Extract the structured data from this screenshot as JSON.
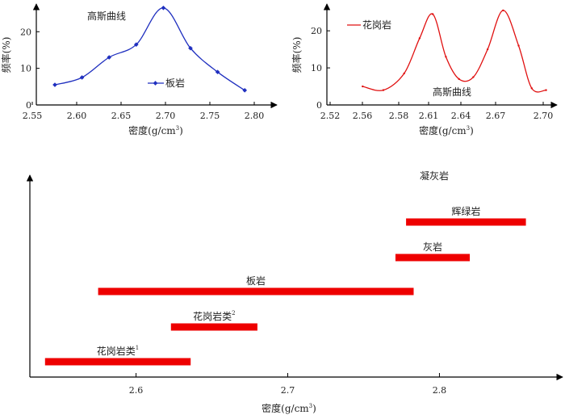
{
  "chart_data": [
    {
      "type": "line",
      "title": "",
      "xlabel": "密度(g/cm",
      "xlabel_sup": "3",
      "xlabel_close": ")",
      "ylabel": "频率(%)",
      "xlim": [
        2.55,
        2.8
      ],
      "ylim": [
        0,
        28
      ],
      "xticks": [
        "2.55",
        "2.60",
        "2.65",
        "2.70",
        "2.75",
        "2.80"
      ],
      "yticks": [
        "0",
        "10",
        "20"
      ],
      "annotation": "高斯曲线",
      "series": [
        {
          "name": "板岩",
          "color": "#1f2fbf",
          "x": [
            2.575,
            2.605,
            2.635,
            2.665,
            2.695,
            2.725,
            2.755,
            2.785
          ],
          "y": [
            5.5,
            7.5,
            13,
            16.5,
            26.5,
            15.5,
            9,
            4
          ]
        }
      ]
    },
    {
      "type": "line",
      "title": "",
      "xlabel": "密度(g/cm",
      "xlabel_sup": "3",
      "xlabel_close": ")",
      "ylabel": "频率(%)",
      "xlim": [
        2.52,
        2.7
      ],
      "ylim": [
        0,
        27
      ],
      "xticks": [
        "2.52",
        "2.56",
        "2.58",
        "2.61",
        "2.64",
        "2.67",
        "2.70"
      ],
      "yticks": [
        "0",
        "10",
        "20"
      ],
      "annotation": "高斯曲线",
      "series": [
        {
          "name": "花岗岩",
          "color": "#e01010",
          "x": [
            2.5452,
            2.5626,
            2.58,
            2.593,
            2.604,
            2.615,
            2.626,
            2.638,
            2.65,
            2.663,
            2.676,
            2.687,
            2.699
          ],
          "y": [
            5,
            4,
            8.5,
            18,
            24.5,
            13,
            7,
            7.5,
            15,
            25.5,
            16,
            4.5,
            4
          ]
        }
      ]
    },
    {
      "type": "bar",
      "orientation": "horizontal-range",
      "title": "凝灰岩",
      "xlabel": "密度(g/cm",
      "xlabel_sup": "3",
      "xlabel_close": ")",
      "xlim": [
        2.53,
        2.87
      ],
      "xticks": [
        "2.6",
        "2.7",
        "2.8"
      ],
      "color": "#ee0000",
      "ranges": [
        {
          "name": "辉绿岩",
          "sup": "",
          "start": 2.778,
          "end": 2.857
        },
        {
          "name": "灰岩",
          "sup": "",
          "start": 2.771,
          "end": 2.82
        },
        {
          "name": "板岩",
          "sup": "",
          "start": 2.575,
          "end": 2.783
        },
        {
          "name": "花岗岩类",
          "sup": "2",
          "start": 2.623,
          "end": 2.68
        },
        {
          "name": "花岗岩类",
          "sup": "1",
          "start": 2.54,
          "end": 2.636
        }
      ]
    }
  ]
}
